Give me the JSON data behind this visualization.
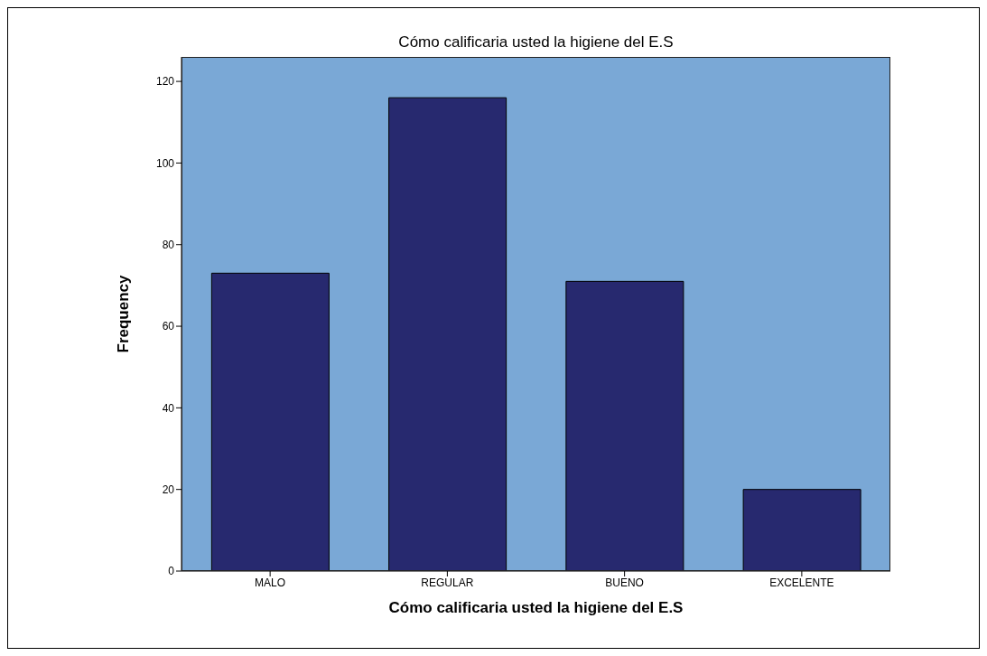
{
  "chart_data": {
    "type": "bar",
    "title": "Cómo calificaria usted la higiene del E.S",
    "xlabel": "Cómo calificaria usted la higiene del E.S",
    "ylabel": "Frequency",
    "categories": [
      "MALO",
      "REGULAR",
      "BUENO",
      "EXCELENTE"
    ],
    "values": [
      73,
      116,
      71,
      20
    ],
    "color": "#27296f",
    "ylim": [
      0,
      126
    ],
    "yticks": [
      0,
      20,
      40,
      60,
      80,
      100,
      120
    ],
    "grid": false,
    "legend": false
  }
}
